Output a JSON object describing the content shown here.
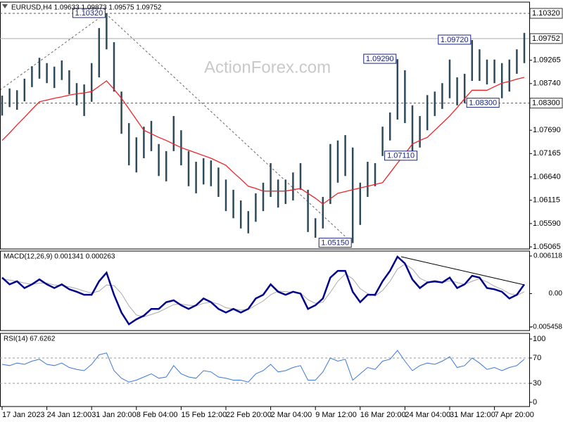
{
  "chart_data": [
    {
      "type": "ohlc",
      "title": "EURUSD,H4 1.09633 1.09873 1.09575 1.09752",
      "watermark": "ActionForex.com",
      "categories": [
        "17 Jan 2023",
        null,
        null,
        null,
        null,
        null,
        "24 Jan 12:00",
        null,
        null,
        null,
        null,
        null,
        "31 Jan 20:00",
        null,
        null,
        null,
        null,
        null,
        "8 Feb 04:00",
        null,
        null,
        null,
        null,
        null,
        "15 Feb 12:00",
        null,
        null,
        null,
        null,
        null,
        "22 Feb 20:00",
        null,
        null,
        null,
        null,
        null,
        "2 Mar 04:00",
        null,
        null,
        null,
        null,
        null,
        "9 Mar 12:00",
        null,
        null,
        null,
        null,
        null,
        "16 Mar 20:00",
        null,
        null,
        null,
        null,
        null,
        "24 Mar 04:00",
        null,
        null,
        null,
        null,
        null,
        "31 Mar 12:00",
        null,
        null,
        null,
        null,
        null,
        "7 Apr 20:00",
        null,
        null,
        null,
        null
      ],
      "high": [
        1.0847,
        1.0863,
        1.0859,
        1.0885,
        1.0913,
        1.0932,
        1.092,
        1.0912,
        1.0926,
        1.0904,
        1.0875,
        1.0872,
        1.092,
        1.0999,
        1.1032,
        1.0967,
        1.0856,
        1.0785,
        1.0753,
        1.0777,
        1.079,
        1.0738,
        1.0722,
        1.0801,
        1.0769,
        1.0722,
        1.0698,
        1.0706,
        1.0701,
        1.0685,
        1.0658,
        1.0635,
        1.0611,
        1.0587,
        1.0627,
        1.0651,
        1.0695,
        1.0658,
        1.0658,
        1.0674,
        1.0695,
        1.0635,
        1.0571,
        1.0619,
        1.0738,
        1.0746,
        1.0758,
        1.073,
        1.0651,
        1.0698,
        1.0695,
        1.0777,
        1.0809,
        1.0929,
        1.0904,
        1.0825,
        1.0801,
        1.0848,
        1.0856,
        1.0875,
        1.0928,
        1.0888,
        1.0896,
        1.0972,
        1.0951,
        1.0928,
        1.0928,
        1.092,
        1.0928,
        1.0951,
        1.0988
      ],
      "low": [
        1.0802,
        1.0821,
        1.0815,
        1.0834,
        1.0866,
        1.0885,
        1.0875,
        1.0864,
        1.0882,
        1.085,
        1.0825,
        1.0801,
        1.0833,
        1.0888,
        1.0951,
        1.0856,
        1.0761,
        1.069,
        1.0674,
        1.0706,
        1.0722,
        1.0666,
        1.0654,
        1.0722,
        1.069,
        1.0643,
        1.0627,
        1.0647,
        1.0643,
        1.0619,
        1.0587,
        1.0571,
        1.0548,
        1.0537,
        1.0563,
        1.0587,
        1.0619,
        1.0595,
        1.0603,
        1.0611,
        1.0635,
        1.054,
        1.0527,
        1.0548,
        1.0603,
        1.0651,
        1.0666,
        1.0515,
        1.0556,
        1.0619,
        1.0643,
        1.0711,
        1.0746,
        1.0793,
        1.0785,
        1.0722,
        1.073,
        1.0769,
        1.0801,
        1.0817,
        1.0841,
        1.0825,
        1.083,
        1.088,
        1.088,
        1.0872,
        1.0875,
        1.0841,
        1.0856,
        1.0896,
        1.092
      ],
      "color": "#2e4a5a",
      "ma_color": "#e8262a",
      "ma": [
        1.0746,
        1.0763,
        1.0781,
        1.0798,
        1.0816,
        1.0833,
        1.0837,
        1.0841,
        1.0844,
        1.0848,
        1.0851,
        1.0853,
        1.0856,
        1.0868,
        1.088,
        1.0861,
        1.0841,
        1.0817,
        1.0793,
        1.0769,
        1.0761,
        1.0753,
        1.0746,
        1.0738,
        1.073,
        1.0724,
        1.0718,
        1.0712,
        1.0706,
        1.0698,
        1.069,
        1.0674,
        1.0659,
        1.0643,
        1.0638,
        1.0632,
        1.0632,
        1.0632,
        1.0632,
        1.0635,
        1.0638,
        1.0627,
        1.0616,
        1.0603,
        1.0615,
        1.0627,
        1.0631,
        1.0635,
        1.0639,
        1.0643,
        1.0647,
        1.0651,
        1.0673,
        1.0695,
        1.0716,
        1.0738,
        1.0746,
        1.0753,
        1.0769,
        1.0785,
        1.0801,
        1.082,
        1.084,
        1.0859,
        1.0859,
        1.0859,
        1.0867,
        1.0875,
        1.0879,
        1.0884,
        1.0888
      ],
      "ylim": [
        1.05018,
        1.10573
      ],
      "yticks": [
        {
          "value": 1.09265,
          "label": "1.09265"
        },
        {
          "value": 1.0874,
          "label": "1.08740"
        },
        {
          "value": 1.0769,
          "label": "1.07690"
        },
        {
          "value": 1.07165,
          "label": "1.07165"
        },
        {
          "value": 1.0664,
          "label": "1.06640"
        },
        {
          "value": 1.06115,
          "label": "1.06115"
        },
        {
          "value": 1.0559,
          "label": "1.05590"
        },
        {
          "value": 1.05065,
          "label": "1.05065"
        }
      ],
      "price_lines": [
        {
          "value": 1.1032,
          "label": "1.10320",
          "style": "dashed"
        },
        {
          "value": 1.09752,
          "label": "1.09752",
          "style": "solid"
        },
        {
          "value": 1.083,
          "label": "1.08300",
          "style": "dashed"
        }
      ],
      "annotations": [
        {
          "value": 1.1032,
          "label": "1.10320"
        },
        {
          "value": 1.0929,
          "label": "1.09290"
        },
        {
          "value": 1.0972,
          "label": "1.09720"
        },
        {
          "value": 1.0711,
          "label": "1.07110"
        },
        {
          "value": 1.083,
          "label": "1.08300"
        },
        {
          "value": 1.0515,
          "label": "1.05150"
        }
      ]
    },
    {
      "type": "macd",
      "title": "MACD(12,26,9) 0.001341 0.000263",
      "ylim": [
        -0.00603,
        0.00692
      ],
      "yticks": [
        0.006118,
        {
          "value": 0,
          "label": "0.00"
        },
        -0.005458
      ],
      "color": "#00008b",
      "values": [
        0.0026,
        0.0015,
        0.002,
        0.0009,
        0.0015,
        0.0023,
        0.0015,
        0.0009,
        0.0015,
        0.0007,
        0.0003,
        -0.0002,
        -0.0002,
        0.002,
        0.0034,
        -0.0002,
        -0.0031,
        -0.005,
        -0.0042,
        -0.0036,
        -0.0025,
        -0.0025,
        -0.0014,
        -0.0011,
        -0.0019,
        -0.0025,
        -0.0019,
        -0.0008,
        -0.0014,
        -0.0025,
        -0.0031,
        -0.0025,
        -0.0031,
        -0.0025,
        -0.0008,
        -0.0002,
        0.0015,
        0.0003,
        -0.0002,
        0.0003,
        0,
        -0.0025,
        -0.0019,
        -0.0008,
        0.0026,
        0.0037,
        0.0037,
        0.0003,
        -0.0014,
        -0.0002,
        -0.0002,
        0.002,
        0.0037,
        0.006,
        0.0049,
        0.0023,
        0.0009,
        0.0018,
        0.002,
        0.0018,
        0.0026,
        0.0009,
        0.0015,
        0.0029,
        0.0026,
        0.0009,
        0.0007,
        0.0003,
        -0.0008,
        -0.0002,
        0.0015
      ],
      "signal_color": "#aaaaaa",
      "signal": [
        0.0024,
        0.0022,
        0.002,
        0.0017,
        0.0015,
        0.0017,
        0.0017,
        0.0014,
        0.0013,
        0.0011,
        0.0008,
        0.0004,
        0.0001,
        0.0004,
        0.0014,
        0.0013,
        0,
        -0.002,
        -0.0035,
        -0.0038,
        -0.0034,
        -0.003,
        -0.0024,
        -0.0018,
        -0.0017,
        -0.0019,
        -0.002,
        -0.0016,
        -0.0014,
        -0.0017,
        -0.0023,
        -0.0025,
        -0.0027,
        -0.0026,
        -0.0019,
        -0.0012,
        -0.0002,
        0.0004,
        0.0003,
        0.0002,
        0.0001,
        -0.001,
        -0.0016,
        -0.0014,
        0.0002,
        0.002,
        0.0032,
        0.0024,
        0.0008,
        0,
        -0.0004,
        0.0005,
        0.002,
        0.004,
        0.0048,
        0.004,
        0.0025,
        0.0019,
        0.0018,
        0.0018,
        0.0021,
        0.0018,
        0.0015,
        0.002,
        0.0024,
        0.0019,
        0.0012,
        0.0007,
        0,
        -0.0003,
        0.0003
      ]
    },
    {
      "type": "rsi",
      "title": "RSI(14) 67.6262",
      "ylim": [
        -6.7,
        108.9
      ],
      "yticks": [
        100,
        70,
        30,
        0
      ],
      "levels": [
        70,
        30
      ],
      "color": "#3c78d8",
      "values": [
        60,
        58,
        62,
        60,
        65,
        68,
        60,
        58,
        62,
        55,
        52,
        50,
        60,
        75,
        78,
        50,
        38,
        32,
        35,
        40,
        45,
        38,
        40,
        58,
        45,
        40,
        38,
        50,
        48,
        40,
        38,
        35,
        35,
        32,
        45,
        50,
        60,
        48,
        50,
        55,
        58,
        35,
        35,
        48,
        70,
        65,
        68,
        35,
        45,
        55,
        52,
        65,
        68,
        82,
        65,
        50,
        58,
        62,
        60,
        65,
        72,
        55,
        58,
        70,
        62,
        52,
        55,
        50,
        55,
        58,
        68
      ]
    }
  ]
}
